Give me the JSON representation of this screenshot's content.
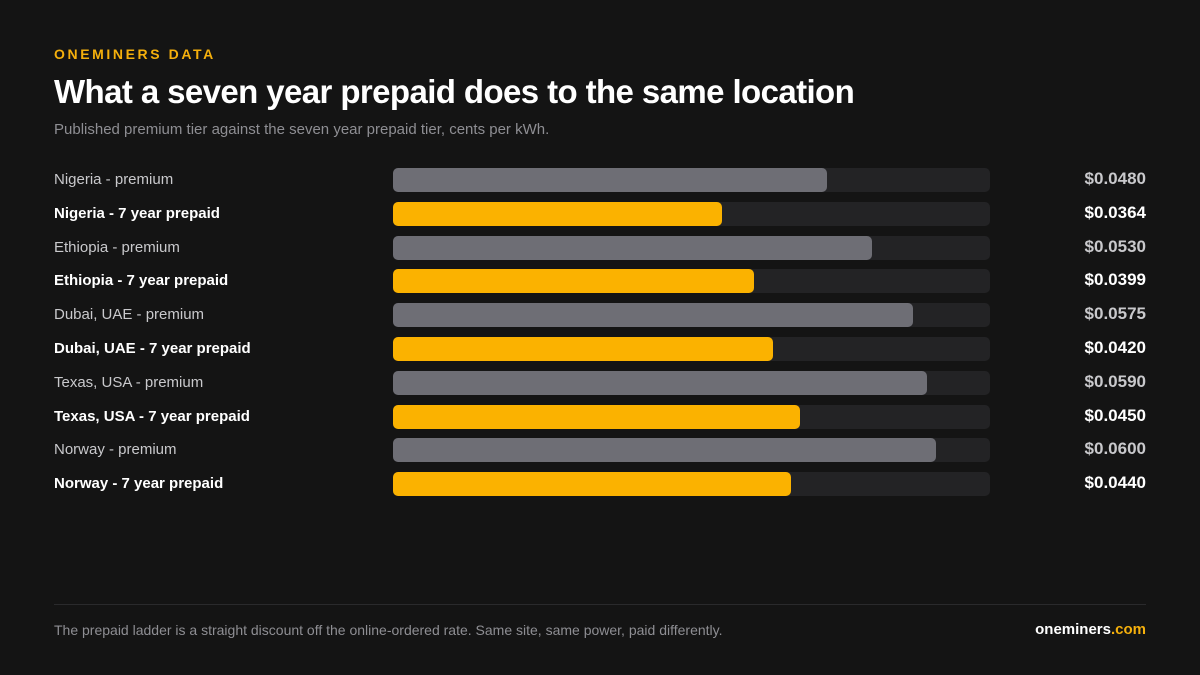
{
  "header": {
    "eyebrow": "ONEMINERS DATA",
    "title": "What a seven year prepaid does to the same location",
    "subtitle": "Published premium tier against the seven year prepaid tier, cents per kWh."
  },
  "colors": {
    "accent": "#f5b00c",
    "premium_bar": "#6e6e75",
    "prepaid_bar": "#fbb200",
    "track": "#232325",
    "background": "#141414"
  },
  "chart_data": {
    "type": "bar",
    "orientation": "horizontal",
    "title": "What a seven year prepaid does to the same location",
    "subtitle": "Published premium tier against the seven year prepaid tier, cents per kWh.",
    "xlim": [
      0,
      0.066
    ],
    "grid": false,
    "categories": [
      "Nigeria - premium",
      "Nigeria - 7 year prepaid",
      "Ethiopia - premium",
      "Ethiopia - 7 year prepaid",
      "Dubai, UAE - premium",
      "Dubai, UAE - 7 year prepaid",
      "Texas, USA - premium",
      "Texas, USA - 7 year prepaid",
      "Norway - premium",
      "Norway - 7 year prepaid"
    ],
    "values": [
      0.048,
      0.0364,
      0.053,
      0.0399,
      0.0575,
      0.042,
      0.059,
      0.045,
      0.06,
      0.044
    ],
    "value_labels": [
      "$0.0480",
      "$0.0364",
      "$0.0530",
      "$0.0399",
      "$0.0575",
      "$0.0420",
      "$0.0590",
      "$0.0450",
      "$0.0600",
      "$0.0440"
    ],
    "tiers": [
      "premium",
      "prepaid",
      "premium",
      "prepaid",
      "premium",
      "prepaid",
      "premium",
      "prepaid",
      "premium",
      "prepaid"
    ]
  },
  "footer": {
    "note": "The prepaid ladder is a straight discount off the online-ordered rate. Same site, same power, paid differently.",
    "brand_name": "oneminers",
    "brand_tld": ".com"
  }
}
